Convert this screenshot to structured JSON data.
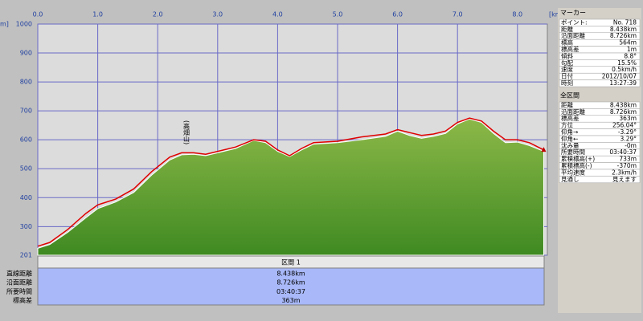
{
  "chart_data": {
    "type": "area",
    "x_unit": "[km]",
    "y_unit": "m]",
    "annotation": "(高畑山)",
    "x": [
      0,
      0.2,
      0.5,
      0.8,
      1.0,
      1.3,
      1.6,
      1.9,
      2.2,
      2.4,
      2.6,
      2.8,
      3.0,
      3.3,
      3.6,
      3.8,
      4.0,
      4.2,
      4.4,
      4.6,
      5.0,
      5.4,
      5.8,
      6.0,
      6.2,
      6.4,
      6.6,
      6.8,
      7.0,
      7.2,
      7.4,
      7.6,
      7.8,
      8.0,
      8.2,
      8.438
    ],
    "series": [
      {
        "color": "#6fa536",
        "values": [
          225,
          238,
          280,
          330,
          362,
          385,
          418,
          478,
          530,
          548,
          550,
          545,
          555,
          570,
          598,
          590,
          560,
          542,
          565,
          585,
          590,
          600,
          612,
          630,
          615,
          605,
          612,
          622,
          655,
          672,
          660,
          622,
          590,
          592,
          580,
          560
        ]
      },
      {
        "color": "#e00000",
        "values": [
          232,
          245,
          290,
          345,
          375,
          395,
          430,
          490,
          540,
          555,
          555,
          550,
          560,
          575,
          600,
          595,
          565,
          545,
          570,
          590,
          595,
          610,
          620,
          635,
          625,
          615,
          620,
          630,
          660,
          675,
          665,
          630,
          600,
          600,
          590,
          565
        ]
      }
    ],
    "marker": {
      "x": 8.438,
      "value": 564
    },
    "xlim": [
      0,
      8.5
    ],
    "ylim": [
      201,
      1000
    ],
    "xticks": [
      {
        "value": 0,
        "label": "0.0"
      },
      {
        "value": 1,
        "label": "1.0"
      },
      {
        "value": 2,
        "label": "2.0"
      },
      {
        "value": 3,
        "label": "3.0"
      },
      {
        "value": 4,
        "label": "4.0"
      },
      {
        "value": 5,
        "label": "5.0"
      },
      {
        "value": 6,
        "label": "6.0"
      },
      {
        "value": 7,
        "label": "7.0"
      },
      {
        "value": 8,
        "label": "8.0"
      }
    ],
    "yticks": [
      201,
      300,
      400,
      500,
      600,
      700,
      800,
      900,
      1000
    ],
    "grid": true
  },
  "segment_table": {
    "header": "区間 1",
    "rows": [
      [
        "直線距離",
        "8.438km"
      ],
      [
        "沿面距離",
        "8.726km"
      ],
      [
        "所要時間",
        "03:40:37"
      ],
      [
        "標高差",
        "363m"
      ]
    ]
  },
  "panel": {
    "marker": {
      "title": "マーカー",
      "rows": [
        [
          "ポイント:",
          "No. 718"
        ],
        [
          "距離",
          "8.438km"
        ],
        [
          "沿面距離",
          "8.726km"
        ],
        [
          "標高",
          "564m"
        ],
        [
          "標高差",
          "1m"
        ],
        [
          "傾斜",
          "8.8°"
        ],
        [
          "勾配",
          "15.5%"
        ],
        [
          "速度",
          "0.5km/h"
        ],
        [
          "日付",
          "2012/10/07"
        ],
        [
          "時刻",
          "13:27:39"
        ]
      ]
    },
    "all": {
      "title": "全区間",
      "rows": [
        [
          "距離",
          "8.438km"
        ],
        [
          "沿面距離",
          "8.726km"
        ],
        [
          "標高差",
          "363m"
        ],
        [
          "方位",
          "256.04°"
        ],
        [
          "仰角→",
          "-3.29°"
        ],
        [
          "仰角←",
          "3.29°"
        ],
        [
          "沈み量",
          "-0m"
        ],
        [
          "所要時間",
          "03:40:37"
        ],
        [
          "累積標高(+)",
          "733m"
        ],
        [
          "累積標高(-)",
          "-370m"
        ],
        [
          "平均速度",
          "2.3km/h"
        ],
        [
          "見通し",
          "見えます"
        ]
      ]
    }
  }
}
